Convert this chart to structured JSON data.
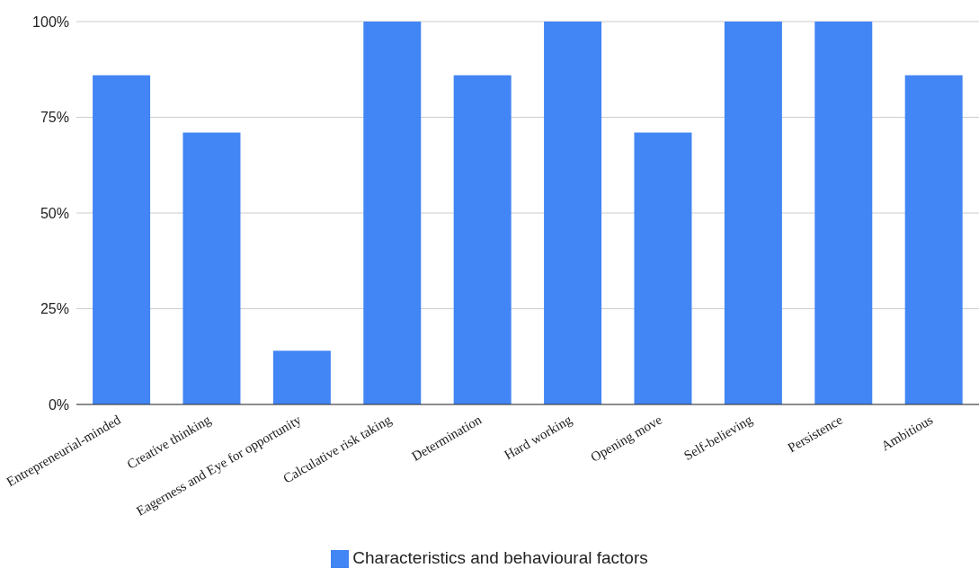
{
  "chart_data": {
    "type": "bar",
    "categories": [
      "Entrepreneurial-minded",
      "Creative thinking",
      "Eagerness and Eye for opportunity",
      "Calculative risk taking",
      "Determination",
      "Hard working",
      "Opening move",
      "Self-believing",
      "Persistence",
      "Ambitious"
    ],
    "series": [
      {
        "name": "Characteristics and behavioural factors",
        "color": "#4285f4",
        "values": [
          86,
          71,
          14,
          100,
          86,
          100,
          71,
          100,
          100,
          86
        ]
      }
    ],
    "ylim": [
      0,
      100
    ],
    "yticks": [
      {
        "value": 0,
        "label": "0%"
      },
      {
        "value": 25,
        "label": "25%"
      },
      {
        "value": 50,
        "label": "50%"
      },
      {
        "value": 75,
        "label": "75%"
      },
      {
        "value": 100,
        "label": "100%"
      }
    ],
    "grid": "y",
    "legend": "bottom"
  }
}
